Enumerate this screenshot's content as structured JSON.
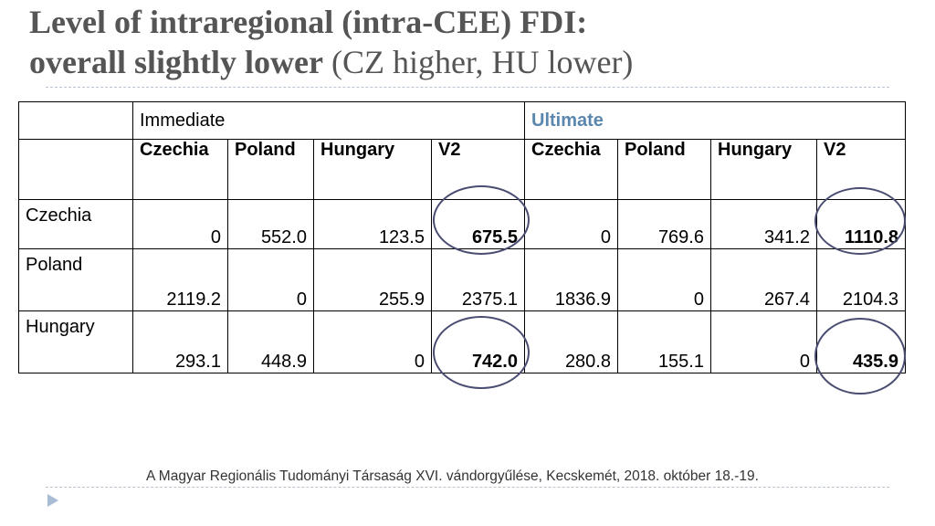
{
  "title": {
    "line1": "Level of intraregional (intra-CEE) FDI:",
    "line2_bold": "overall slightly lower",
    "line2_normal": " (CZ higher, HU lower)"
  },
  "table": {
    "group_immediate": "Immediate",
    "group_ultimate": "Ultimate",
    "subheaders": [
      "Czechia",
      "Poland",
      "Hungary",
      "V2",
      "Czechia",
      "Poland",
      "Hungary",
      "V2"
    ],
    "rows": [
      {
        "label": "Czechia",
        "cells": [
          "0",
          "552.0",
          "123.5",
          "675.5",
          "0",
          "769.6",
          "341.2",
          "1110.8"
        ]
      },
      {
        "label": "Poland",
        "cells": [
          "2119.2",
          "0",
          "255.9",
          "2375.1",
          "1836.9",
          "0",
          "267.4",
          "2104.3"
        ]
      },
      {
        "label": "Hungary",
        "cells": [
          "293.1",
          "448.9",
          "0",
          "742.0",
          "280.8",
          "155.1",
          "0",
          "435.9"
        ]
      }
    ],
    "highlighted_cells": [
      "Czechia V2 Immediate",
      "Czechia V2 Ultimate",
      "Hungary V2 Immediate",
      "Hungary V2 Ultimate"
    ]
  },
  "footer": "A Magyar Regionális Tudományi Társaság XVI. vándorgyűlése, Kecskemét, 2018. október 18.-19.",
  "colors": {
    "title": "#555555",
    "ultimate": "#5b87ae",
    "circle": "#4a4d72",
    "rule": "#b9c3cf"
  }
}
